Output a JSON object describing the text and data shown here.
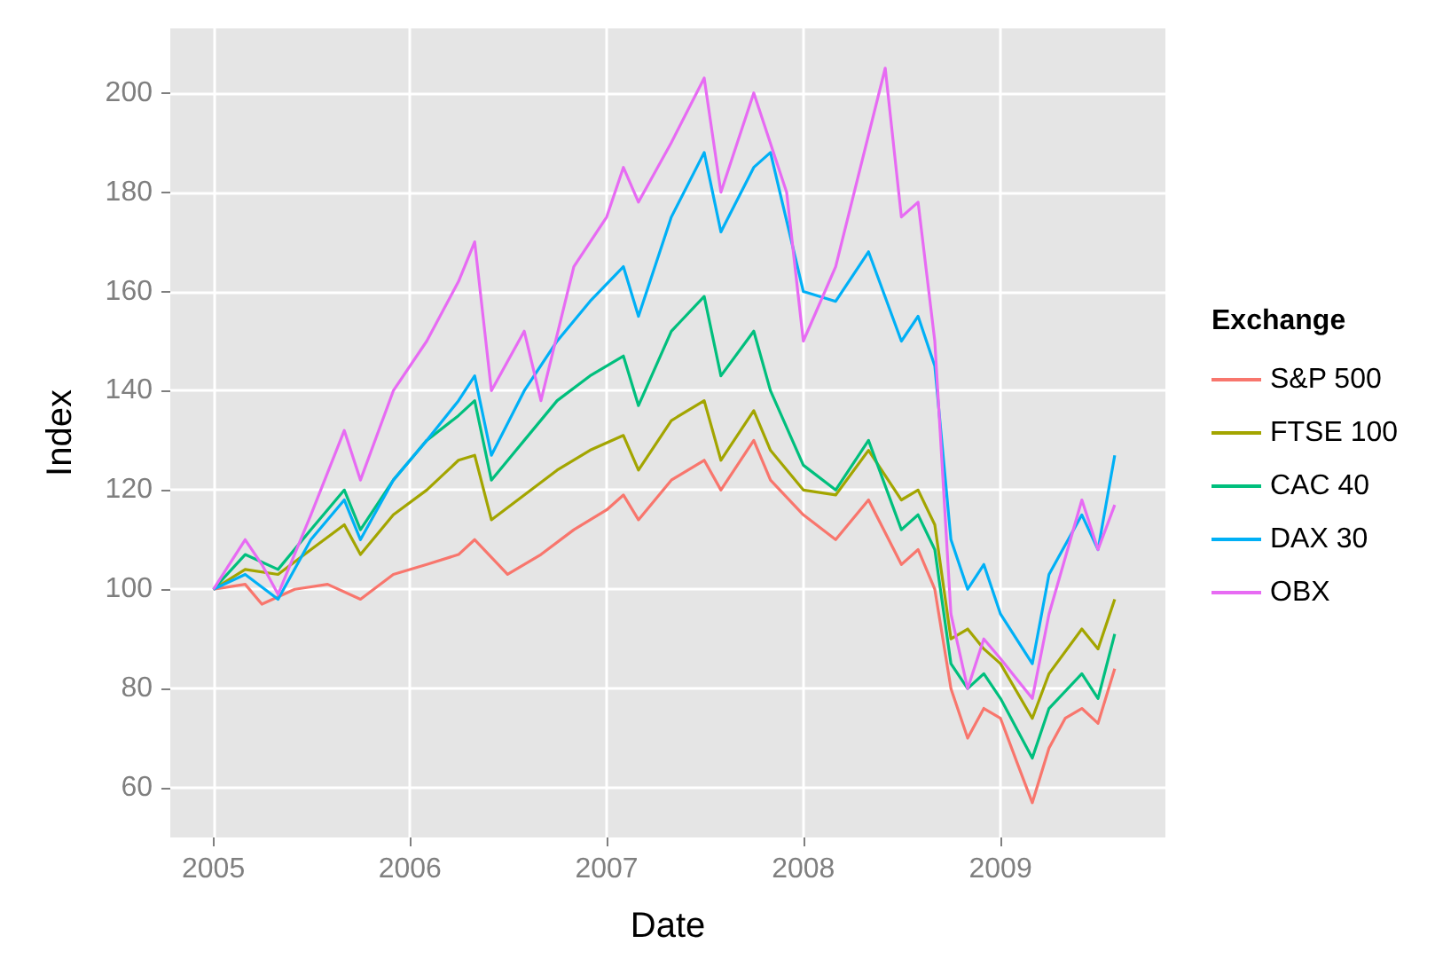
{
  "chart_data": {
    "type": "line",
    "xlabel": "Date",
    "ylabel": "Index",
    "legend_title": "Exchange",
    "legend": "right",
    "grid": true,
    "marker": "none",
    "xlim": [
      "2004-10-13",
      "2009-11-03"
    ],
    "xticks": [
      "2005",
      "2006",
      "2007",
      "2008",
      "2009"
    ],
    "ylim": [
      50,
      213
    ],
    "yticks": [
      60,
      80,
      100,
      120,
      140,
      160,
      180,
      200
    ],
    "series": [
      {
        "name": "S&P 500",
        "color": "#f8766d",
        "x": [
          "2005-01",
          "2005-03",
          "2005-04",
          "2005-06",
          "2005-08",
          "2005-10",
          "2005-12",
          "2006-02",
          "2006-04",
          "2006-05",
          "2006-07",
          "2006-09",
          "2006-11",
          "2007-01",
          "2007-02",
          "2007-03",
          "2007-05",
          "2007-07",
          "2007-08",
          "2007-10",
          "2007-11",
          "2008-01",
          "2008-03",
          "2008-05",
          "2008-07",
          "2008-08",
          "2008-09",
          "2008-10",
          "2008-11",
          "2008-12",
          "2009-01",
          "2009-02",
          "2009-03",
          "2009-04",
          "2009-05",
          "2009-06",
          "2009-07",
          "2009-08"
        ],
        "values": [
          100,
          101,
          97,
          100,
          101,
          98,
          103,
          105,
          107,
          110,
          103,
          107,
          112,
          116,
          119,
          114,
          122,
          126,
          120,
          130,
          122,
          115,
          110,
          118,
          105,
          108,
          100,
          80,
          70,
          76,
          74,
          65,
          57,
          68,
          74,
          76,
          73,
          84
        ]
      },
      {
        "name": "FTSE 100",
        "color": "#a3a500",
        "x": [
          "2005-01",
          "2005-03",
          "2005-05",
          "2005-07",
          "2005-09",
          "2005-10",
          "2005-12",
          "2006-02",
          "2006-04",
          "2006-05",
          "2006-06",
          "2006-08",
          "2006-10",
          "2006-12",
          "2007-02",
          "2007-03",
          "2007-05",
          "2007-07",
          "2007-08",
          "2007-10",
          "2007-11",
          "2008-01",
          "2008-03",
          "2008-05",
          "2008-07",
          "2008-08",
          "2008-09",
          "2008-10",
          "2008-11",
          "2008-12",
          "2009-01",
          "2009-03",
          "2009-04",
          "2009-06",
          "2009-07",
          "2009-08"
        ],
        "values": [
          100,
          104,
          103,
          108,
          113,
          107,
          115,
          120,
          126,
          127,
          114,
          119,
          124,
          128,
          131,
          124,
          134,
          138,
          126,
          136,
          128,
          120,
          119,
          128,
          118,
          120,
          113,
          90,
          92,
          88,
          85,
          74,
          83,
          92,
          88,
          98
        ]
      },
      {
        "name": "CAC 40",
        "color": "#00bf7d",
        "x": [
          "2005-01",
          "2005-03",
          "2005-05",
          "2005-07",
          "2005-09",
          "2005-10",
          "2005-12",
          "2006-02",
          "2006-04",
          "2006-05",
          "2006-06",
          "2006-08",
          "2006-10",
          "2006-12",
          "2007-02",
          "2007-03",
          "2007-05",
          "2007-07",
          "2007-08",
          "2007-10",
          "2007-11",
          "2008-01",
          "2008-03",
          "2008-05",
          "2008-07",
          "2008-08",
          "2008-09",
          "2008-10",
          "2008-11",
          "2008-12",
          "2009-01",
          "2009-03",
          "2009-04",
          "2009-06",
          "2009-07",
          "2009-08"
        ],
        "values": [
          100,
          107,
          104,
          112,
          120,
          112,
          122,
          130,
          135,
          138,
          122,
          130,
          138,
          143,
          147,
          137,
          152,
          159,
          143,
          152,
          140,
          125,
          120,
          130,
          112,
          115,
          108,
          85,
          80,
          83,
          78,
          66,
          76,
          83,
          78,
          91
        ]
      },
      {
        "name": "DAX 30",
        "color": "#00b0f6",
        "x": [
          "2005-01",
          "2005-03",
          "2005-05",
          "2005-07",
          "2005-09",
          "2005-10",
          "2005-12",
          "2006-02",
          "2006-04",
          "2006-05",
          "2006-06",
          "2006-08",
          "2006-10",
          "2006-12",
          "2007-02",
          "2007-03",
          "2007-05",
          "2007-07",
          "2007-08",
          "2007-10",
          "2007-11",
          "2008-01",
          "2008-03",
          "2008-05",
          "2008-07",
          "2008-08",
          "2008-09",
          "2008-10",
          "2008-11",
          "2008-12",
          "2009-01",
          "2009-03",
          "2009-04",
          "2009-06",
          "2009-07",
          "2009-08"
        ],
        "values": [
          100,
          103,
          98,
          110,
          118,
          110,
          122,
          130,
          138,
          143,
          127,
          140,
          150,
          158,
          165,
          155,
          175,
          188,
          172,
          185,
          188,
          160,
          158,
          168,
          150,
          155,
          145,
          110,
          100,
          105,
          95,
          85,
          103,
          115,
          108,
          127
        ]
      },
      {
        "name": "OBX",
        "color": "#e76bf3",
        "x": [
          "2005-01",
          "2005-03",
          "2005-04",
          "2005-05",
          "2005-07",
          "2005-09",
          "2005-10",
          "2005-12",
          "2006-02",
          "2006-04",
          "2006-05",
          "2006-06",
          "2006-08",
          "2006-09",
          "2006-11",
          "2007-01",
          "2007-02",
          "2007-03",
          "2007-05",
          "2007-07",
          "2007-08",
          "2007-10",
          "2007-12",
          "2008-01",
          "2008-03",
          "2008-06",
          "2008-07",
          "2008-08",
          "2008-09",
          "2008-10",
          "2008-11",
          "2008-12",
          "2009-01",
          "2009-03",
          "2009-04",
          "2009-06",
          "2009-07",
          "2009-08"
        ],
        "values": [
          100,
          110,
          105,
          99,
          115,
          132,
          122,
          140,
          150,
          162,
          170,
          140,
          152,
          138,
          165,
          175,
          185,
          178,
          190,
          203,
          180,
          200,
          180,
          150,
          165,
          205,
          175,
          178,
          150,
          95,
          80,
          90,
          86,
          78,
          95,
          118,
          108,
          117
        ]
      }
    ]
  }
}
